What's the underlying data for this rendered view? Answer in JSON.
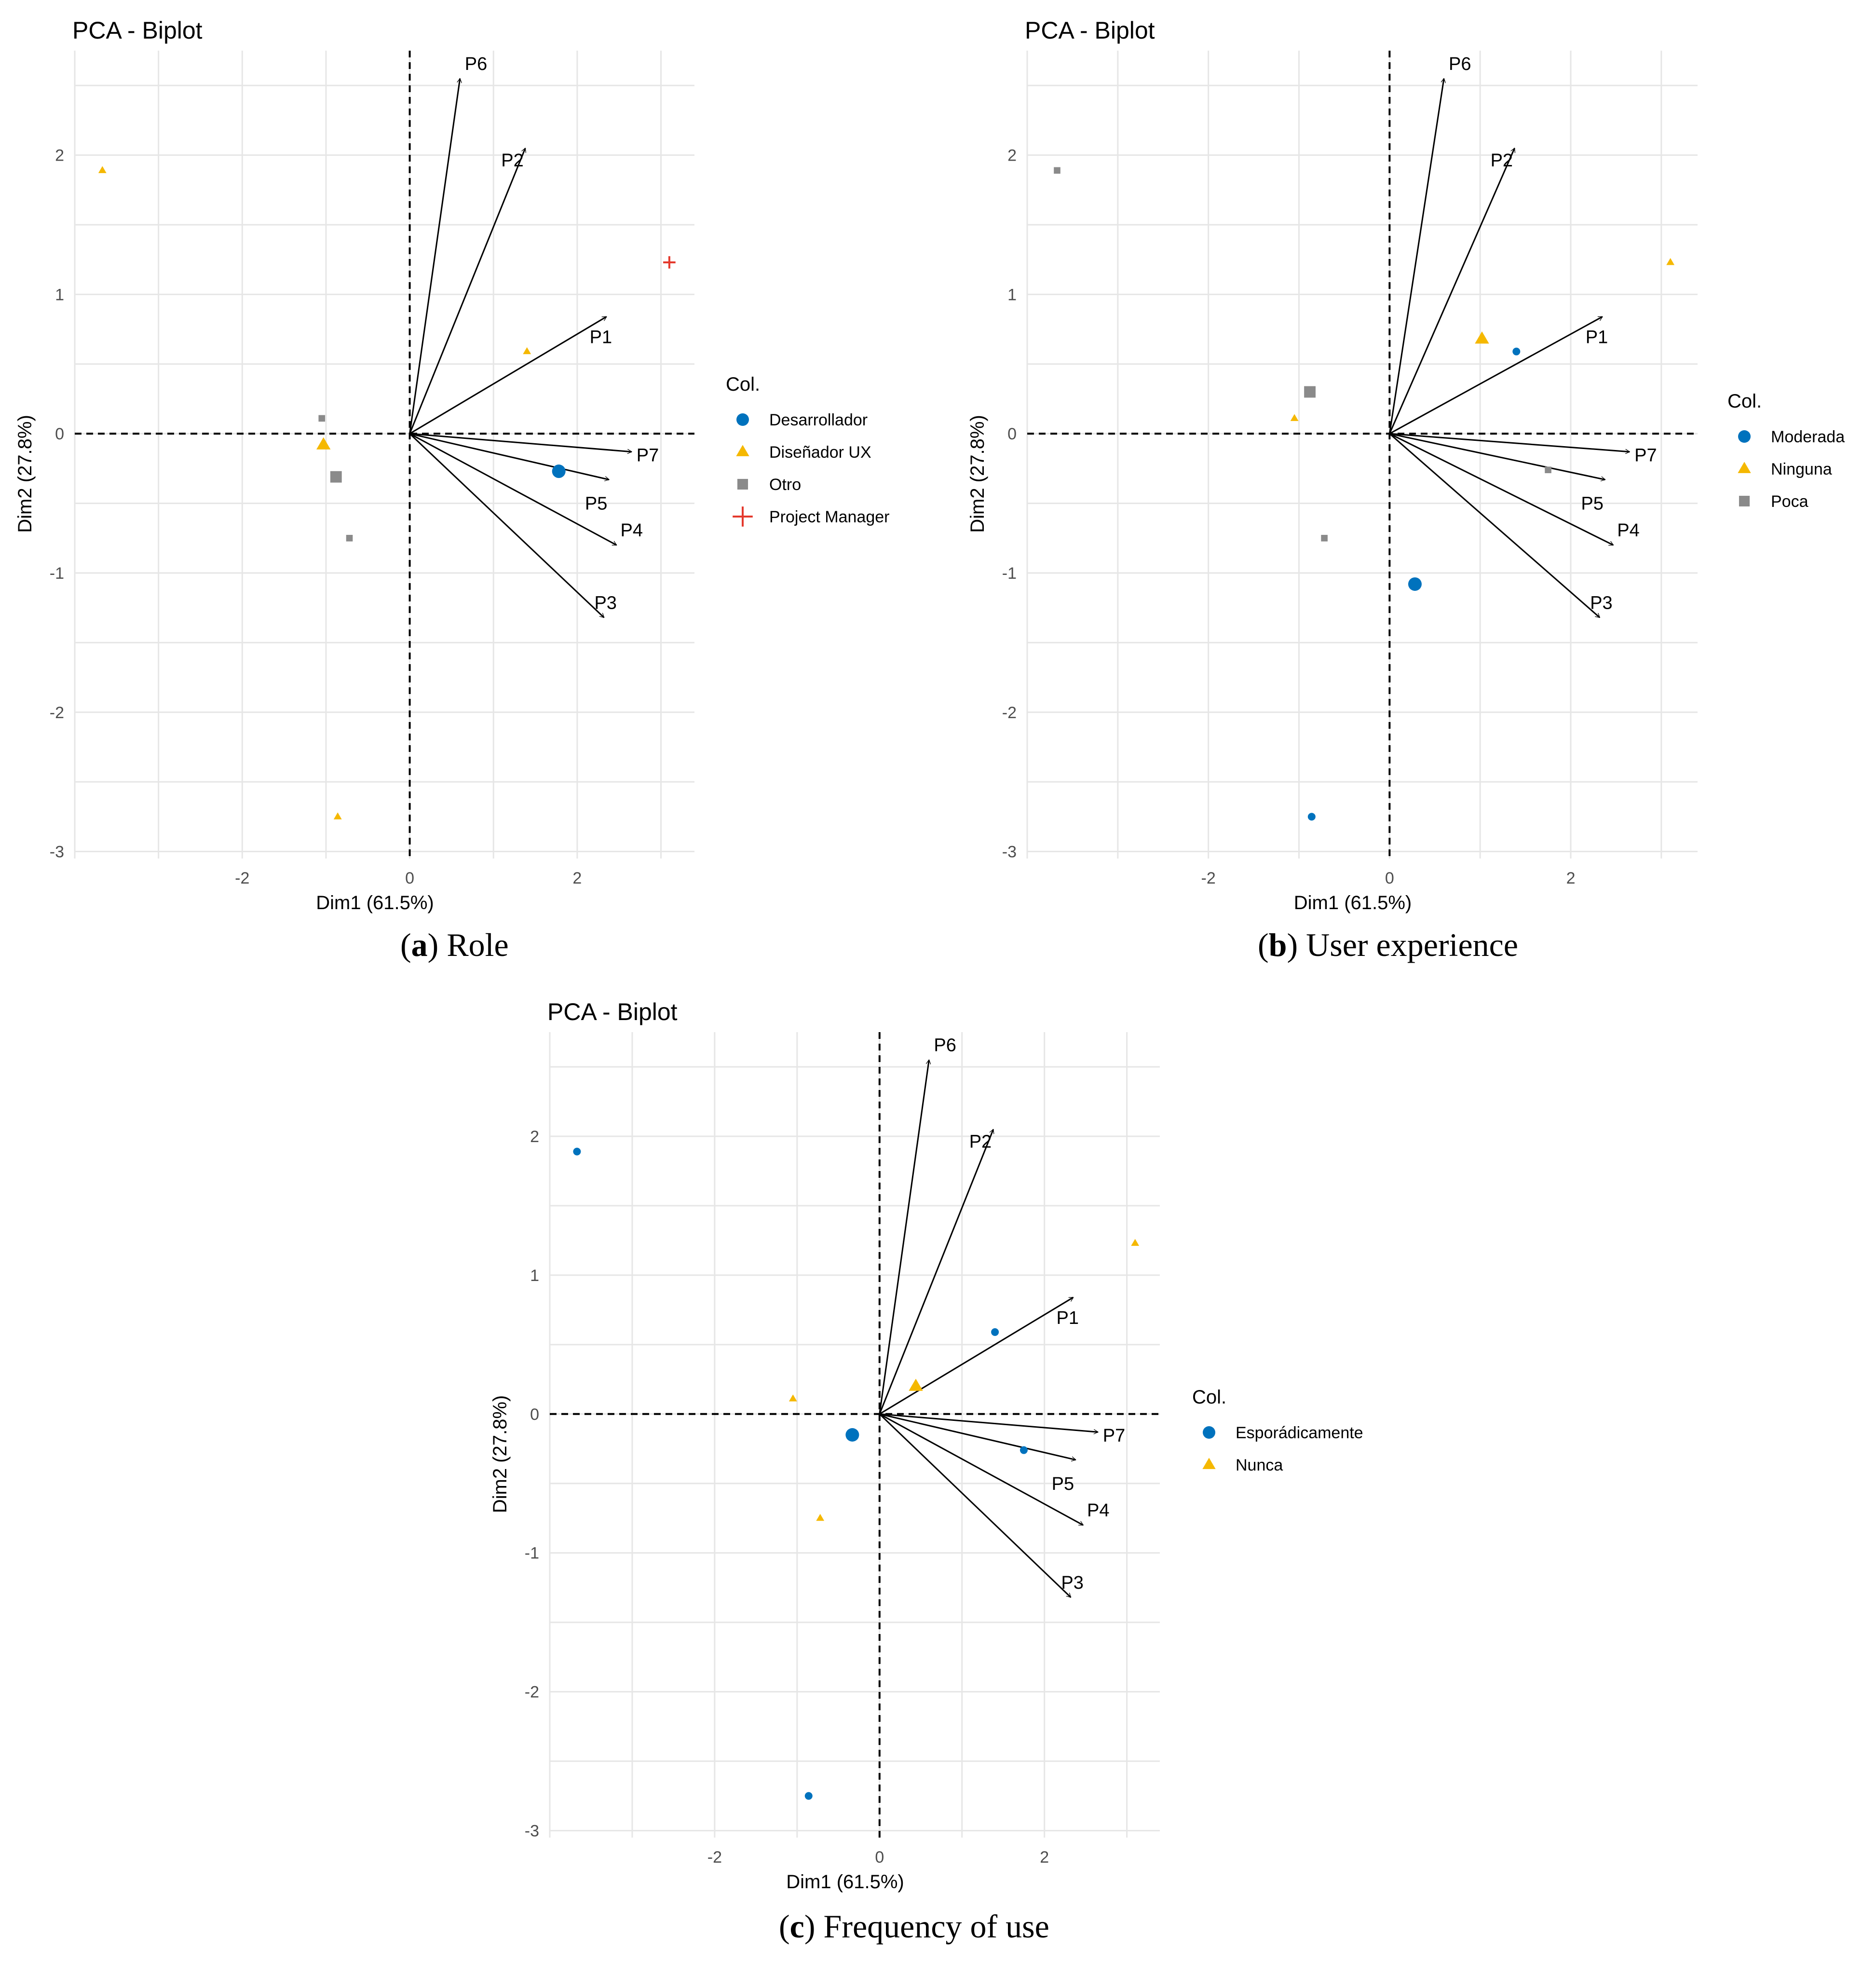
{
  "colors": {
    "blue": "#0072BD",
    "yellow": "#F5B800",
    "gray": "#8A8A8A",
    "red": "#E4392D",
    "grid": "#E6E6E6",
    "axis_text": "#4D4D4D"
  },
  "chart_data": [
    {
      "type": "scatter",
      "subtype": "pca-biplot",
      "title": "PCA - Biplot",
      "xlabel": "Dim1 (61.5%)",
      "ylabel": "Dim2 (27.8%)",
      "xlim": [
        -4,
        3.4
      ],
      "ylim": [
        -3.05,
        2.75
      ],
      "xticks": [
        -2,
        0,
        2
      ],
      "yticks": [
        -3,
        -2,
        -1,
        0,
        1,
        2
      ],
      "caption_letter": "a",
      "caption_text": "Role",
      "legend": {
        "title": "Col.",
        "position": "right",
        "entries": [
          {
            "label": "Desarrollador",
            "shape": "circle",
            "color": "#0072BD"
          },
          {
            "label": "Diseñador UX",
            "shape": "triangle",
            "color": "#F5B800"
          },
          {
            "label": "Otro",
            "shape": "square",
            "color": "#8A8A8A"
          },
          {
            "label": "Project Manager",
            "shape": "cross",
            "color": "#E4392D"
          }
        ]
      },
      "variables": [
        {
          "name": "P6",
          "x": 0.6,
          "y": 2.55
        },
        {
          "name": "P2",
          "x": 1.38,
          "y": 2.05
        },
        {
          "name": "P1",
          "x": 2.35,
          "y": 0.84
        },
        {
          "name": "P7",
          "x": 2.65,
          "y": -0.13
        },
        {
          "name": "P5",
          "x": 2.38,
          "y": -0.33
        },
        {
          "name": "P4",
          "x": 2.47,
          "y": -0.8
        },
        {
          "name": "P3",
          "x": 2.32,
          "y": -1.32
        }
      ],
      "points": [
        {
          "group": "Diseñador UX",
          "x": -3.67,
          "y": 1.89,
          "kind": "individual"
        },
        {
          "group": "Project Manager",
          "x": 3.1,
          "y": 1.23,
          "kind": "individual"
        },
        {
          "group": "Diseñador UX",
          "x": 1.4,
          "y": 0.59,
          "kind": "individual"
        },
        {
          "group": "Otro",
          "x": -1.05,
          "y": 0.11,
          "kind": "individual"
        },
        {
          "group": "Diseñador UX",
          "x": -1.03,
          "y": -0.08,
          "kind": "mean"
        },
        {
          "group": "Otro",
          "x": -0.88,
          "y": -0.31,
          "kind": "mean"
        },
        {
          "group": "Otro",
          "x": -0.72,
          "y": -0.75,
          "kind": "individual"
        },
        {
          "group": "Desarrollador",
          "x": 1.78,
          "y": -0.27,
          "kind": "mean"
        },
        {
          "group": "Diseñador UX",
          "x": -0.86,
          "y": -2.75,
          "kind": "individual"
        }
      ]
    },
    {
      "type": "scatter",
      "subtype": "pca-biplot",
      "title": "PCA - Biplot",
      "xlabel": "Dim1 (61.5%)",
      "ylabel": "Dim2 (27.8%)",
      "xlim": [
        -4,
        3.4
      ],
      "ylim": [
        -3.05,
        2.75
      ],
      "xticks": [
        -2,
        0,
        2
      ],
      "yticks": [
        -3,
        -2,
        -1,
        0,
        1,
        2
      ],
      "caption_letter": "b",
      "caption_text": "User experience",
      "legend": {
        "title": "Col.",
        "position": "right",
        "entries": [
          {
            "label": "Moderada",
            "shape": "circle",
            "color": "#0072BD"
          },
          {
            "label": "Ninguna",
            "shape": "triangle",
            "color": "#F5B800"
          },
          {
            "label": "Poca",
            "shape": "square",
            "color": "#8A8A8A"
          }
        ]
      },
      "variables": [
        {
          "name": "P6",
          "x": 0.6,
          "y": 2.55
        },
        {
          "name": "P2",
          "x": 1.38,
          "y": 2.05
        },
        {
          "name": "P1",
          "x": 2.35,
          "y": 0.84
        },
        {
          "name": "P7",
          "x": 2.65,
          "y": -0.13
        },
        {
          "name": "P5",
          "x": 2.38,
          "y": -0.33
        },
        {
          "name": "P4",
          "x": 2.47,
          "y": -0.8
        },
        {
          "name": "P3",
          "x": 2.32,
          "y": -1.32
        }
      ],
      "points": [
        {
          "group": "Poca",
          "x": -3.67,
          "y": 1.89,
          "kind": "individual"
        },
        {
          "group": "Ninguna",
          "x": 3.1,
          "y": 1.23,
          "kind": "individual"
        },
        {
          "group": "Ninguna",
          "x": 1.02,
          "y": 0.68,
          "kind": "mean"
        },
        {
          "group": "Moderada",
          "x": 1.4,
          "y": 0.59,
          "kind": "individual"
        },
        {
          "group": "Poca",
          "x": -0.88,
          "y": 0.3,
          "kind": "mean"
        },
        {
          "group": "Ninguna",
          "x": -1.05,
          "y": 0.11,
          "kind": "individual"
        },
        {
          "group": "Poca",
          "x": 1.75,
          "y": -0.26,
          "kind": "individual"
        },
        {
          "group": "Poca",
          "x": -0.72,
          "y": -0.75,
          "kind": "individual"
        },
        {
          "group": "Moderada",
          "x": 0.28,
          "y": -1.08,
          "kind": "mean"
        },
        {
          "group": "Moderada",
          "x": -0.86,
          "y": -2.75,
          "kind": "individual"
        }
      ]
    },
    {
      "type": "scatter",
      "subtype": "pca-biplot",
      "title": "PCA - Biplot",
      "xlabel": "Dim1 (61.5%)",
      "ylabel": "Dim2 (27.8%)",
      "xlim": [
        -4,
        3.4
      ],
      "ylim": [
        -3.05,
        2.75
      ],
      "xticks": [
        -2,
        0,
        2
      ],
      "yticks": [
        -3,
        -2,
        -1,
        0,
        1,
        2
      ],
      "caption_letter": "c",
      "caption_text": "Frequency of use",
      "legend": {
        "title": "Col.",
        "position": "right",
        "entries": [
          {
            "label": "Esporádicamente",
            "shape": "circle",
            "color": "#0072BD"
          },
          {
            "label": "Nunca",
            "shape": "triangle",
            "color": "#F5B800"
          }
        ]
      },
      "variables": [
        {
          "name": "P6",
          "x": 0.6,
          "y": 2.55
        },
        {
          "name": "P2",
          "x": 1.38,
          "y": 2.05
        },
        {
          "name": "P1",
          "x": 2.35,
          "y": 0.84
        },
        {
          "name": "P7",
          "x": 2.65,
          "y": -0.13
        },
        {
          "name": "P5",
          "x": 2.38,
          "y": -0.33
        },
        {
          "name": "P4",
          "x": 2.47,
          "y": -0.8
        },
        {
          "name": "P3",
          "x": 2.32,
          "y": -1.32
        }
      ],
      "points": [
        {
          "group": "Esporádicamente",
          "x": -3.67,
          "y": 1.89,
          "kind": "individual"
        },
        {
          "group": "Nunca",
          "x": 3.1,
          "y": 1.23,
          "kind": "individual"
        },
        {
          "group": "Esporádicamente",
          "x": 1.4,
          "y": 0.59,
          "kind": "individual"
        },
        {
          "group": "Nunca",
          "x": 0.44,
          "y": 0.2,
          "kind": "mean"
        },
        {
          "group": "Nunca",
          "x": -1.05,
          "y": 0.11,
          "kind": "individual"
        },
        {
          "group": "Esporádicamente",
          "x": -0.33,
          "y": -0.15,
          "kind": "mean"
        },
        {
          "group": "Esporádicamente",
          "x": 1.75,
          "y": -0.26,
          "kind": "individual"
        },
        {
          "group": "Nunca",
          "x": -0.72,
          "y": -0.75,
          "kind": "individual"
        },
        {
          "group": "Esporádicamente",
          "x": -0.86,
          "y": -2.75,
          "kind": "individual"
        }
      ]
    }
  ]
}
